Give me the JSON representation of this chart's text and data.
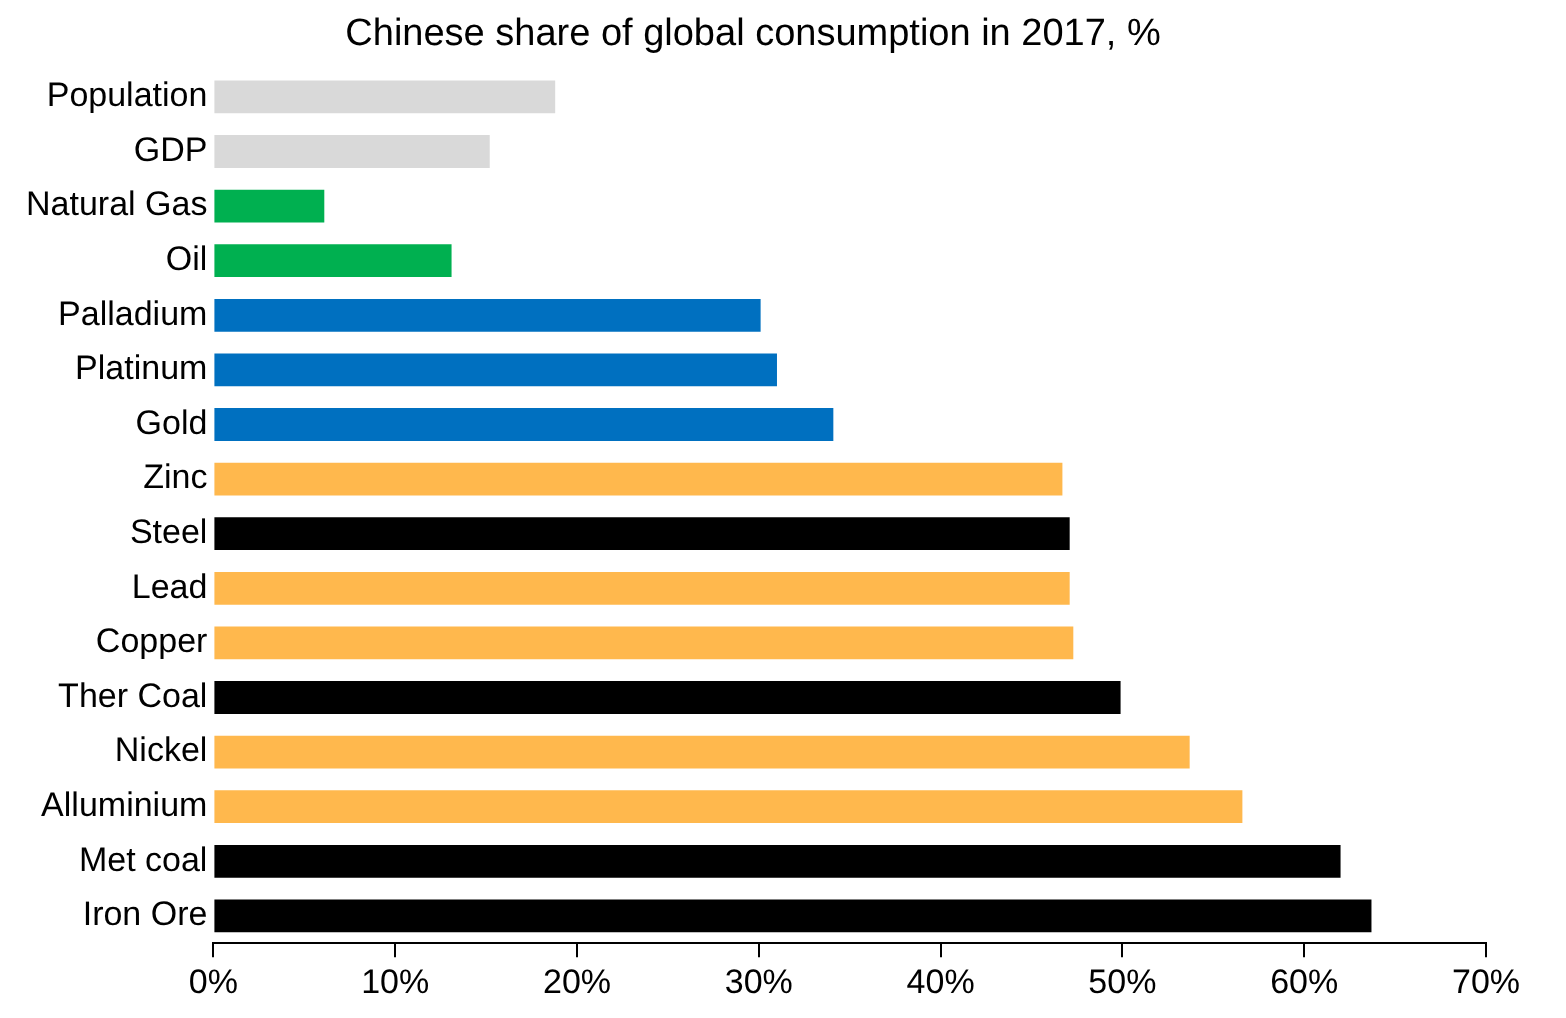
{
  "chart_data": {
    "type": "bar",
    "orientation": "horizontal",
    "title": "Chinese share of global consumption in 2017, %",
    "categories": [
      "Population",
      "GDP",
      "Natural Gas",
      "Oil",
      "Palladium",
      "Platinum",
      "Gold",
      "Zinc",
      "Steel",
      "Lead",
      "Copper",
      "Ther Coal",
      "Nickel",
      "Alluminium",
      "Met coal",
      "Iron Ore"
    ],
    "values": [
      18.8,
      15.2,
      6.1,
      13.1,
      30.1,
      31.0,
      34.1,
      46.7,
      47.1,
      47.1,
      47.3,
      49.9,
      53.7,
      56.6,
      62.0,
      63.7
    ],
    "colors": [
      "#d9d9d9",
      "#d9d9d9",
      "#00b050",
      "#00b050",
      "#0070c0",
      "#0070c0",
      "#0070c0",
      "#ffb84d",
      "#000000",
      "#ffb84d",
      "#ffb84d",
      "#000000",
      "#ffb84d",
      "#ffb84d",
      "#000000",
      "#000000"
    ],
    "xlim": [
      0,
      70
    ],
    "xticks": [
      {
        "value": 0,
        "label": "0%"
      },
      {
        "value": 10,
        "label": "10%"
      },
      {
        "value": 20,
        "label": "20%"
      },
      {
        "value": 30,
        "label": "30%"
      },
      {
        "value": 40,
        "label": "40%"
      },
      {
        "value": 50,
        "label": "50%"
      },
      {
        "value": 60,
        "label": "60%"
      },
      {
        "value": 70,
        "label": "70%"
      }
    ],
    "grid": false,
    "legend": false
  }
}
